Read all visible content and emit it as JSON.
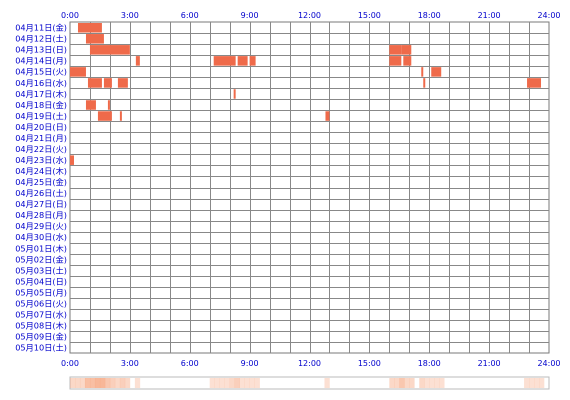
{
  "chart_data": {
    "type": "heatmap",
    "title": "",
    "xlabel": "",
    "ylabel": "",
    "x_range_hours": [
      0,
      24
    ],
    "x_tick_labels": [
      "0:00",
      "3:00",
      "6:00",
      "9:00",
      "12:00",
      "15:00",
      "18:00",
      "21:00",
      "24:00"
    ],
    "colors": {
      "bar": "#ef6a4a",
      "grid": "#888888",
      "frame": "#7a7a7a",
      "label": "#0000cc",
      "density": "#f6a57e"
    },
    "rows": [
      {
        "label": "04月11日(金)",
        "spans": [
          [
            0.4,
            1.6
          ]
        ]
      },
      {
        "label": "04月12日(土)",
        "spans": [
          [
            0.8,
            1.7
          ]
        ]
      },
      {
        "label": "04月13日(日)",
        "spans": [
          [
            1.0,
            3.0
          ],
          [
            16.0,
            16.6
          ],
          [
            16.6,
            17.1
          ]
        ]
      },
      {
        "label": "04月14日(月)",
        "spans": [
          [
            3.3,
            3.5
          ],
          [
            7.2,
            8.3
          ],
          [
            8.4,
            8.9
          ],
          [
            9.0,
            9.3
          ],
          [
            16.0,
            16.6
          ],
          [
            16.7,
            17.1
          ]
        ]
      },
      {
        "label": "04月15日(火)",
        "spans": [
          [
            0.0,
            0.8
          ],
          [
            17.6,
            17.7
          ],
          [
            18.1,
            18.6
          ]
        ]
      },
      {
        "label": "04月16日(水)",
        "spans": [
          [
            0.9,
            1.6
          ],
          [
            1.7,
            2.1
          ],
          [
            2.4,
            2.9
          ],
          [
            17.7,
            17.8
          ],
          [
            22.9,
            23.6
          ]
        ]
      },
      {
        "label": "04月17日(木)",
        "spans": [
          [
            8.2,
            8.3
          ]
        ]
      },
      {
        "label": "04月18日(金)",
        "spans": [
          [
            0.8,
            1.3
          ],
          [
            1.9,
            2.0
          ]
        ]
      },
      {
        "label": "04月19日(土)",
        "spans": [
          [
            1.4,
            2.1
          ],
          [
            2.5,
            2.6
          ],
          [
            12.8,
            13.0
          ]
        ]
      },
      {
        "label": "04月20日(日)",
        "spans": []
      },
      {
        "label": "04月21日(月)",
        "spans": []
      },
      {
        "label": "04月22日(火)",
        "spans": []
      },
      {
        "label": "04月23日(水)",
        "spans": [
          [
            0.0,
            0.2
          ]
        ]
      },
      {
        "label": "04月24日(木)",
        "spans": []
      },
      {
        "label": "04月25日(金)",
        "spans": []
      },
      {
        "label": "04月26日(土)",
        "spans": []
      },
      {
        "label": "04月27日(日)",
        "spans": []
      },
      {
        "label": "04月28日(月)",
        "spans": []
      },
      {
        "label": "04月29日(火)",
        "spans": []
      },
      {
        "label": "04月30日(水)",
        "spans": []
      },
      {
        "label": "05月01日(木)",
        "spans": []
      },
      {
        "label": "05月02日(金)",
        "spans": []
      },
      {
        "label": "05月03日(土)",
        "spans": []
      },
      {
        "label": "05月04日(日)",
        "spans": []
      },
      {
        "label": "05月05日(月)",
        "spans": []
      },
      {
        "label": "05月06日(火)",
        "spans": []
      },
      {
        "label": "05月07日(水)",
        "spans": []
      },
      {
        "label": "05月08日(木)",
        "spans": []
      },
      {
        "label": "05月09日(金)",
        "spans": []
      },
      {
        "label": "05月10日(土)",
        "spans": []
      }
    ]
  }
}
